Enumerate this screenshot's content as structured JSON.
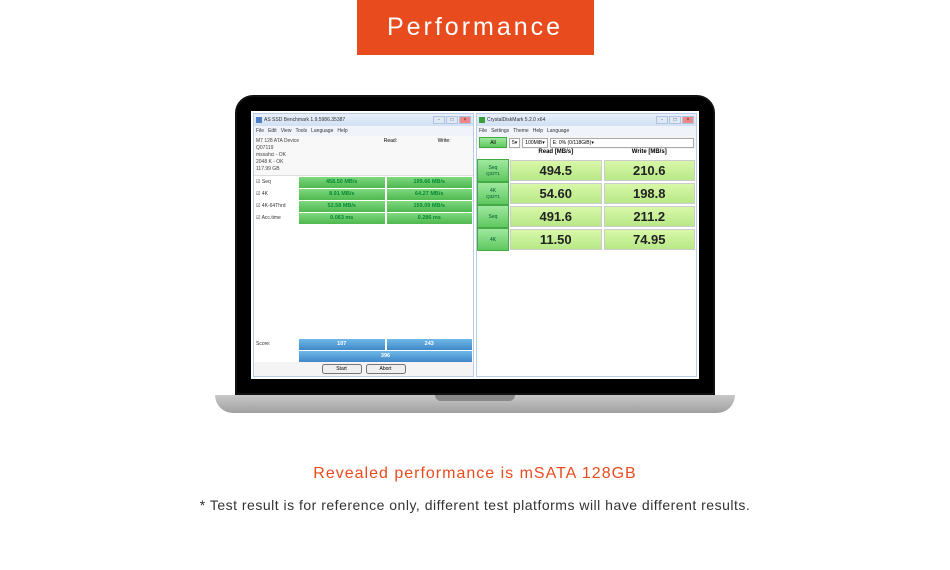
{
  "banner": {
    "text": "Performance",
    "bg": "#e84c1e",
    "color": "#ffffff"
  },
  "as_ssd": {
    "title": "AS SSD Benchmark 1.9.5986.35387",
    "menu": [
      "File",
      "Edit",
      "View",
      "Tools",
      "Language",
      "Help"
    ],
    "device_dropdown": "# - 128 sATA Device",
    "info": [
      "M7 128 ATA Device",
      "Q07119",
      "mssahci - OK",
      "2048 K - OK",
      "117.99 GB"
    ],
    "col_read": "Read:",
    "col_write": "Write:",
    "rows": [
      {
        "label": "Seq",
        "read": "458.50 MB/s",
        "write": "199.66 MB/s",
        "style": "green"
      },
      {
        "label": "4K",
        "read": "8.91 MB/s",
        "write": "64.27 MB/s",
        "style": "green"
      },
      {
        "label": "4K-64Thrd",
        "read": "52.58 MB/s",
        "write": "159.09 MB/s",
        "style": "green"
      },
      {
        "label": "Acc.time",
        "read": "0.063 ms",
        "write": "0.286 ms",
        "style": "green"
      }
    ],
    "score_label": "Score:",
    "score_read": "107",
    "score_write": "243",
    "score_total": "396",
    "buttons": [
      "Start",
      "Abort"
    ]
  },
  "cdm": {
    "title": "CrystalDiskMark 5.2.0 x64",
    "menu": [
      "File",
      "Settings",
      "Theme",
      "Help",
      "Language"
    ],
    "all_label": "All",
    "runs": "5",
    "size": "100MiB",
    "drive": "E: 0% (0/118GiB)",
    "h_read": "Read [MB/s]",
    "h_write": "Write [MB/s]",
    "rows": [
      {
        "btn_main": "Seq",
        "btn_sub": "Q32T1",
        "read": "494.5",
        "write": "210.6"
      },
      {
        "btn_main": "4K",
        "btn_sub": "Q32T1",
        "read": "54.60",
        "write": "198.8"
      },
      {
        "btn_main": "Seq",
        "btn_sub": "",
        "read": "491.6",
        "write": "211.2"
      },
      {
        "btn_main": "4K",
        "btn_sub": "",
        "read": "11.50",
        "write": "74.95"
      }
    ]
  },
  "reveal": "Revealed performance is mSATA 128GB",
  "footnote": "* Test result is for reference only, different test platforms will have different results."
}
